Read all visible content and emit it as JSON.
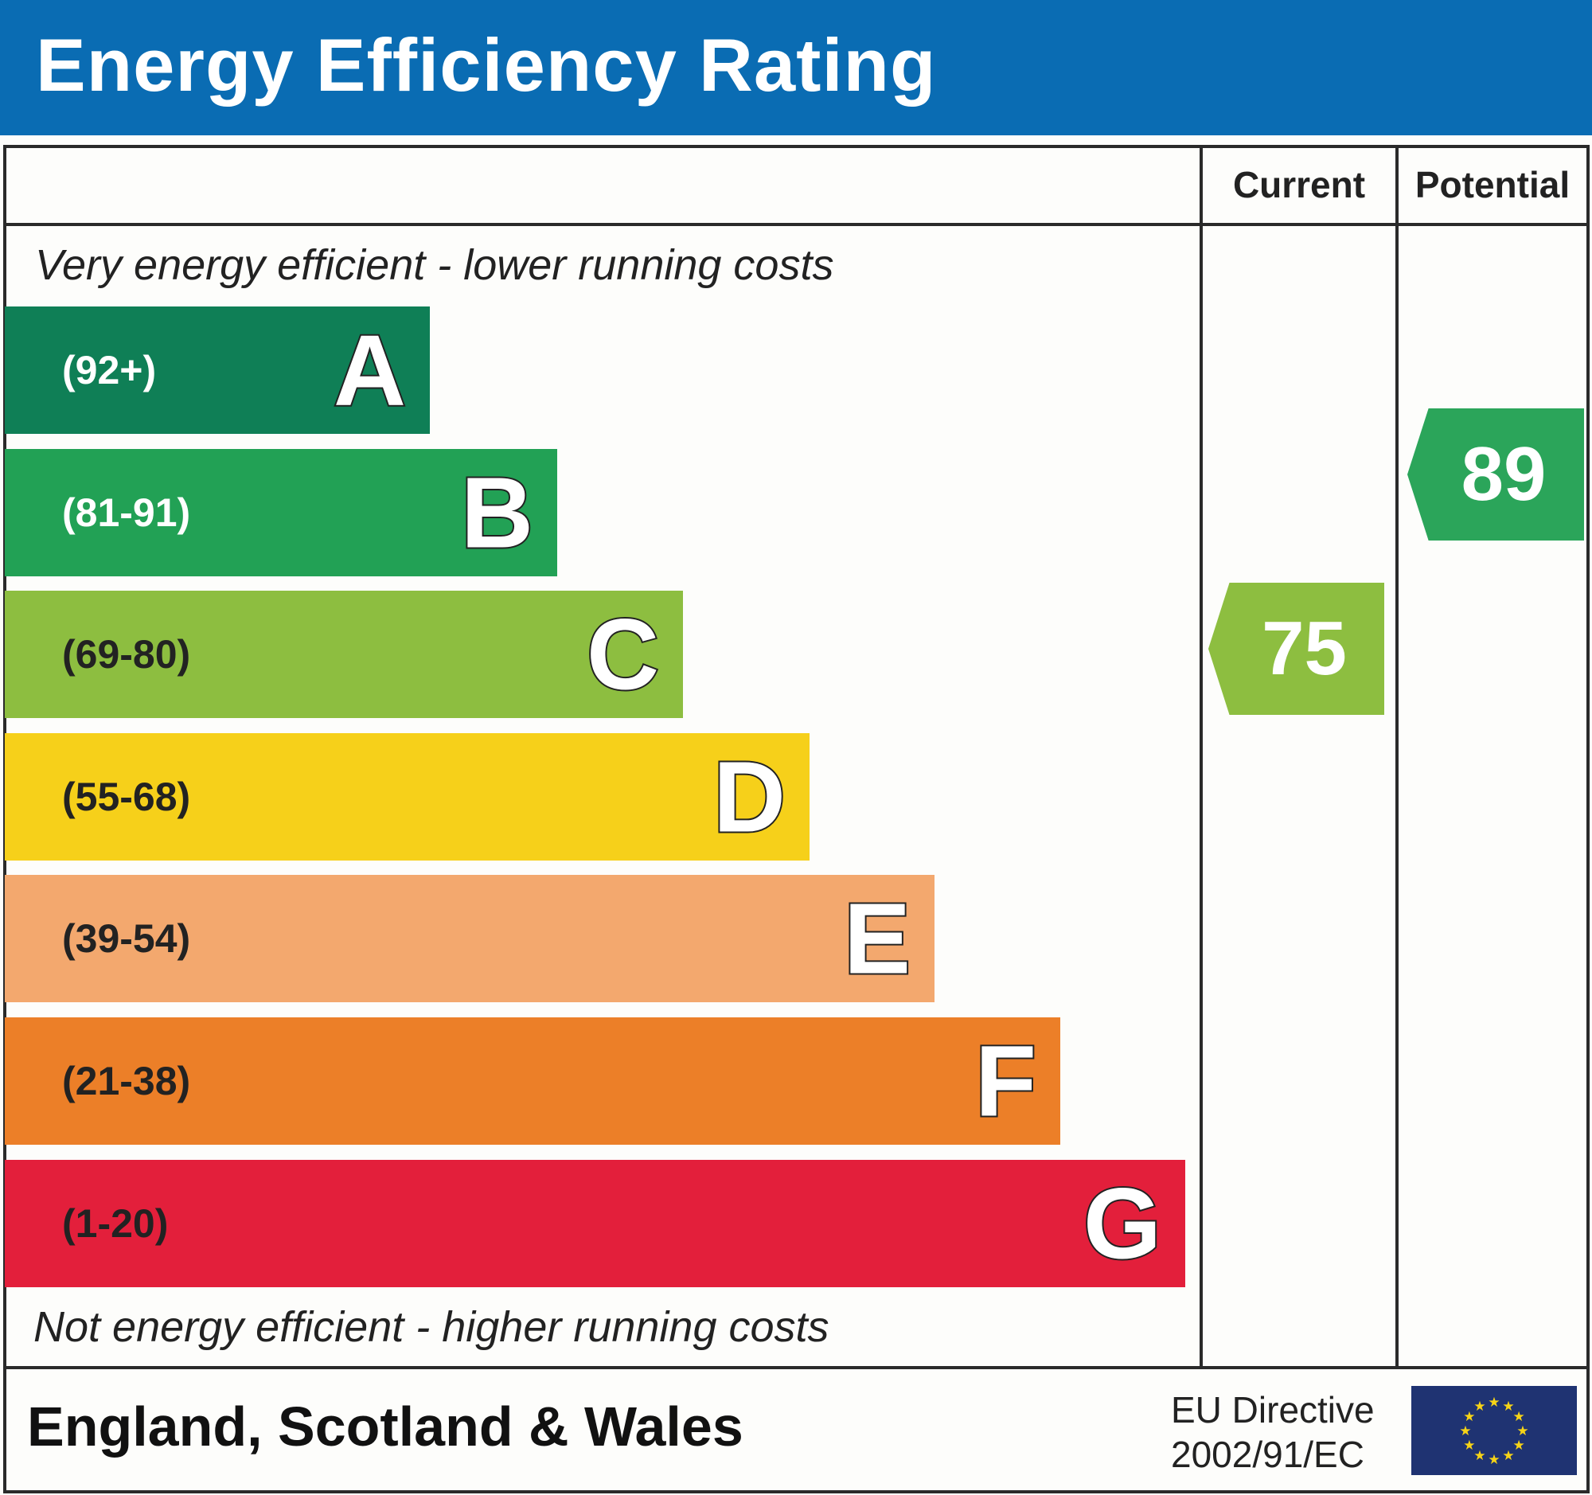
{
  "title": "Energy Efficiency Rating",
  "columns": {
    "current": "Current",
    "potential": "Potential"
  },
  "top_note": "Very energy efficient - lower running costs",
  "bottom_note": "Not energy efficient - higher running costs",
  "footer": {
    "region": "England, Scotland & Wales",
    "directive_line1": "EU Directive",
    "directive_line2": "2002/91/EC",
    "flag_icon": "eu-flag-icon"
  },
  "chart_data": {
    "type": "bar",
    "categories": [
      "A",
      "B",
      "C",
      "D",
      "E",
      "F",
      "G"
    ],
    "ranges": [
      "(92+)",
      "(81-91)",
      "(69-80)",
      "(55-68)",
      "(39-54)",
      "(21-38)",
      "(1-20)"
    ],
    "colors": [
      "#0f7f56",
      "#22a155",
      "#8dbe40",
      "#f6d01a",
      "#f3a86e",
      "#ec7f28",
      "#e31f3b"
    ],
    "range_text_colors": [
      "#ffffff",
      "#ffffff",
      "#222222",
      "#222222",
      "#222222",
      "#222222",
      "#222222"
    ],
    "current": {
      "value": "75",
      "band": "C",
      "color": "#8dbe40"
    },
    "potential": {
      "value": "89",
      "band": "B",
      "color": "#2ba55a"
    }
  }
}
